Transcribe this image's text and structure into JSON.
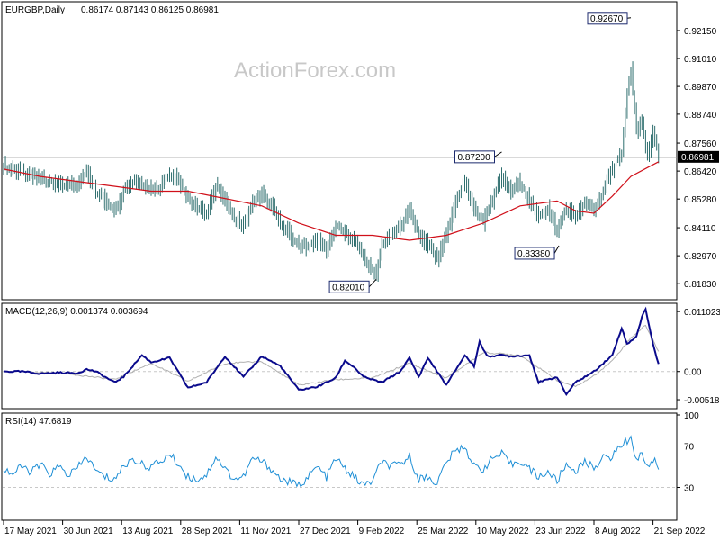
{
  "header": {
    "symbol_label": "EURGBP,Daily",
    "ohlc_values": "0.86174 0.87143 0.86125 0.86981"
  },
  "watermark": "ActionForex.com",
  "colors": {
    "bars": "#2e6e6e",
    "ma": "#d0101a",
    "macd": "#0a0a8c",
    "signal": "#b0b0b0",
    "rsi": "#1e8fd6",
    "grid": "#c8c8c8"
  },
  "chart_data": [
    {
      "type": "bar",
      "name_label": "",
      "ylim": [
        0.8125,
        0.9325
      ],
      "y_ticks": [
        "0.92150",
        "0.91010",
        "0.89870",
        "0.88740",
        "0.87560",
        "0.86420",
        "0.85280",
        "0.84110",
        "0.82970",
        "0.81830"
      ],
      "y_tick_values": [
        0.9215,
        0.9101,
        0.8987,
        0.8874,
        0.8756,
        0.8642,
        0.8528,
        0.8411,
        0.8297,
        0.8183
      ],
      "current_price": "0.86981",
      "current_price_value": 0.86981,
      "annotations": [
        {
          "label": "0.92670",
          "date_index": 340,
          "value": 0.9267
        },
        {
          "label": "0.87200",
          "date_index": 270,
          "value": 0.872
        },
        {
          "label": "0.83380",
          "date_index": 301,
          "value": 0.8338
        },
        {
          "label": "0.82010",
          "date_index": 202,
          "value": 0.8201
        }
      ],
      "x_tick_labels": [
        "17 May 2021",
        "30 Jun 2021",
        "13 Aug 2021",
        "28 Sep 2021",
        "11 Nov 2021",
        "27 Dec 2021",
        "9 Feb 2022",
        "25 Mar 2022",
        "10 May 2022",
        "23 Jun 2022",
        "8 Aug 2022",
        "21 Sep 2022"
      ],
      "x_tick_indices": [
        0,
        32,
        64,
        96,
        128,
        160,
        192,
        224,
        256,
        288,
        320,
        352
      ],
      "close_path": [
        [
          0,
          0.866
        ],
        [
          10,
          0.864
        ],
        [
          20,
          0.861
        ],
        [
          30,
          0.859
        ],
        [
          40,
          0.858
        ],
        [
          45,
          0.864
        ],
        [
          50,
          0.856
        ],
        [
          55,
          0.852
        ],
        [
          60,
          0.848
        ],
        [
          65,
          0.856
        ],
        [
          70,
          0.86
        ],
        [
          75,
          0.859
        ],
        [
          80,
          0.856
        ],
        [
          85,
          0.858
        ],
        [
          90,
          0.863
        ],
        [
          95,
          0.86
        ],
        [
          100,
          0.853
        ],
        [
          105,
          0.849
        ],
        [
          110,
          0.847
        ],
        [
          115,
          0.858
        ],
        [
          120,
          0.853
        ],
        [
          125,
          0.845
        ],
        [
          130,
          0.842
        ],
        [
          135,
          0.852
        ],
        [
          140,
          0.855
        ],
        [
          145,
          0.85
        ],
        [
          150,
          0.843
        ],
        [
          155,
          0.838
        ],
        [
          160,
          0.834
        ],
        [
          165,
          0.833
        ],
        [
          170,
          0.837
        ],
        [
          175,
          0.832
        ],
        [
          180,
          0.842
        ],
        [
          185,
          0.839
        ],
        [
          190,
          0.836
        ],
        [
          195,
          0.829
        ],
        [
          200,
          0.824
        ],
        [
          202,
          0.822
        ],
        [
          205,
          0.834
        ],
        [
          210,
          0.838
        ],
        [
          215,
          0.842
        ],
        [
          220,
          0.848
        ],
        [
          225,
          0.838
        ],
        [
          230,
          0.834
        ],
        [
          235,
          0.828
        ],
        [
          240,
          0.838
        ],
        [
          245,
          0.852
        ],
        [
          250,
          0.86
        ],
        [
          255,
          0.848
        ],
        [
          260,
          0.844
        ],
        [
          265,
          0.853
        ],
        [
          270,
          0.862
        ],
        [
          275,
          0.856
        ],
        [
          280,
          0.86
        ],
        [
          285,
          0.852
        ],
        [
          290,
          0.846
        ],
        [
          295,
          0.849
        ],
        [
          300,
          0.84
        ],
        [
          305,
          0.849
        ],
        [
          310,
          0.846
        ],
        [
          315,
          0.851
        ],
        [
          320,
          0.848
        ],
        [
          325,
          0.856
        ],
        [
          330,
          0.865
        ],
        [
          335,
          0.872
        ],
        [
          338,
          0.895
        ],
        [
          340,
          0.905
        ],
        [
          343,
          0.88
        ],
        [
          346,
          0.884
        ],
        [
          349,
          0.87
        ],
        [
          352,
          0.88
        ],
        [
          355,
          0.87
        ]
      ],
      "ma_path": [
        [
          0,
          0.865
        ],
        [
          20,
          0.862
        ],
        [
          40,
          0.86
        ],
        [
          60,
          0.858
        ],
        [
          80,
          0.856
        ],
        [
          100,
          0.856
        ],
        [
          120,
          0.853
        ],
        [
          140,
          0.85
        ],
        [
          160,
          0.843
        ],
        [
          180,
          0.838
        ],
        [
          200,
          0.838
        ],
        [
          220,
          0.836
        ],
        [
          240,
          0.838
        ],
        [
          260,
          0.843
        ],
        [
          280,
          0.85
        ],
        [
          300,
          0.852
        ],
        [
          310,
          0.848
        ],
        [
          320,
          0.847
        ],
        [
          330,
          0.854
        ],
        [
          340,
          0.862
        ],
        [
          350,
          0.866
        ],
        [
          355,
          0.868
        ]
      ]
    },
    {
      "type": "line",
      "label": "MACD(12,26,9) 0.001374 0.003694",
      "ylim": [
        -0.0065,
        0.0122
      ],
      "y_ticks": [
        "0.011023",
        "0.00",
        "-0.005182"
      ],
      "y_tick_values": [
        0.011023,
        0.0,
        -0.005182
      ],
      "macd_path": [
        [
          0,
          0
        ],
        [
          10,
          0
        ],
        [
          20,
          -0.0004
        ],
        [
          30,
          -0.0002
        ],
        [
          40,
          -0.0003
        ],
        [
          45,
          0.0004
        ],
        [
          50,
          0
        ],
        [
          60,
          -0.002
        ],
        [
          65,
          -0.001
        ],
        [
          75,
          0.003
        ],
        [
          80,
          0.0017
        ],
        [
          90,
          0.0025
        ],
        [
          100,
          -0.003
        ],
        [
          110,
          -0.002
        ],
        [
          120,
          0.0028
        ],
        [
          130,
          -0.001
        ],
        [
          140,
          0.0028
        ],
        [
          150,
          0.001
        ],
        [
          160,
          -0.0034
        ],
        [
          170,
          -0.0028
        ],
        [
          180,
          -0.0012
        ],
        [
          185,
          0.002
        ],
        [
          190,
          0.0008
        ],
        [
          195,
          -0.001
        ],
        [
          205,
          -0.002
        ],
        [
          215,
          0
        ],
        [
          220,
          0.0025
        ],
        [
          225,
          -0.001
        ],
        [
          230,
          0.0025
        ],
        [
          240,
          -0.0025
        ],
        [
          250,
          0.003
        ],
        [
          255,
          0.001
        ],
        [
          258,
          0.0055
        ],
        [
          262,
          0.0028
        ],
        [
          270,
          0.003
        ],
        [
          275,
          0.0028
        ],
        [
          285,
          0.003
        ],
        [
          290,
          -0.002
        ],
        [
          300,
          -0.001
        ],
        [
          305,
          -0.0042
        ],
        [
          310,
          -0.002
        ],
        [
          320,
          0
        ],
        [
          330,
          0.003
        ],
        [
          335,
          0.008
        ],
        [
          338,
          0.005
        ],
        [
          343,
          0.0065
        ],
        [
          346,
          0.01
        ],
        [
          348,
          0.0115
        ],
        [
          352,
          0.005
        ],
        [
          355,
          0.0014
        ]
      ],
      "signal_path": [
        [
          0,
          0
        ],
        [
          30,
          -0.0002
        ],
        [
          60,
          -0.0015
        ],
        [
          80,
          0.0015
        ],
        [
          100,
          -0.0018
        ],
        [
          120,
          0.0015
        ],
        [
          140,
          0.0018
        ],
        [
          160,
          -0.0025
        ],
        [
          180,
          -0.0015
        ],
        [
          200,
          -0.0012
        ],
        [
          220,
          0.0015
        ],
        [
          240,
          -0.0012
        ],
        [
          260,
          0.0035
        ],
        [
          280,
          0.003
        ],
        [
          300,
          -0.0016
        ],
        [
          310,
          -0.0028
        ],
        [
          320,
          -0.0008
        ],
        [
          330,
          0.002
        ],
        [
          340,
          0.0062
        ],
        [
          348,
          0.0085
        ],
        [
          355,
          0.0037
        ]
      ]
    },
    {
      "type": "line",
      "label": "RSI(14) 47.6819",
      "ylim": [
        0,
        100
      ],
      "y_ticks": [
        "100",
        "70",
        "30"
      ],
      "y_tick_values": [
        100,
        70,
        30
      ],
      "rsi_path": [
        [
          0,
          48
        ],
        [
          5,
          43
        ],
        [
          10,
          50
        ],
        [
          15,
          45
        ],
        [
          20,
          52
        ],
        [
          25,
          43
        ],
        [
          30,
          50
        ],
        [
          35,
          42
        ],
        [
          40,
          48
        ],
        [
          45,
          60
        ],
        [
          50,
          46
        ],
        [
          55,
          40
        ],
        [
          60,
          38
        ],
        [
          65,
          50
        ],
        [
          70,
          58
        ],
        [
          75,
          52
        ],
        [
          80,
          50
        ],
        [
          85,
          55
        ],
        [
          90,
          62
        ],
        [
          95,
          52
        ],
        [
          100,
          40
        ],
        [
          105,
          38
        ],
        [
          110,
          42
        ],
        [
          115,
          60
        ],
        [
          120,
          48
        ],
        [
          125,
          38
        ],
        [
          130,
          40
        ],
        [
          135,
          58
        ],
        [
          140,
          55
        ],
        [
          145,
          48
        ],
        [
          150,
          38
        ],
        [
          155,
          35
        ],
        [
          160,
          32
        ],
        [
          165,
          40
        ],
        [
          170,
          50
        ],
        [
          175,
          40
        ],
        [
          180,
          58
        ],
        [
          185,
          48
        ],
        [
          190,
          40
        ],
        [
          195,
          32
        ],
        [
          200,
          36
        ],
        [
          205,
          55
        ],
        [
          210,
          50
        ],
        [
          215,
          52
        ],
        [
          220,
          60
        ],
        [
          225,
          38
        ],
        [
          230,
          40
        ],
        [
          235,
          34
        ],
        [
          240,
          55
        ],
        [
          245,
          65
        ],
        [
          250,
          70
        ],
        [
          255,
          50
        ],
        [
          260,
          48
        ],
        [
          265,
          58
        ],
        [
          270,
          62
        ],
        [
          275,
          52
        ],
        [
          280,
          56
        ],
        [
          285,
          48
        ],
        [
          290,
          40
        ],
        [
          295,
          45
        ],
        [
          300,
          36
        ],
        [
          305,
          52
        ],
        [
          310,
          46
        ],
        [
          315,
          54
        ],
        [
          320,
          50
        ],
        [
          325,
          58
        ],
        [
          330,
          60
        ],
        [
          335,
          72
        ],
        [
          338,
          75
        ],
        [
          340,
          80
        ],
        [
          343,
          55
        ],
        [
          346,
          65
        ],
        [
          349,
          48
        ],
        [
          352,
          58
        ],
        [
          355,
          48
        ]
      ]
    }
  ]
}
